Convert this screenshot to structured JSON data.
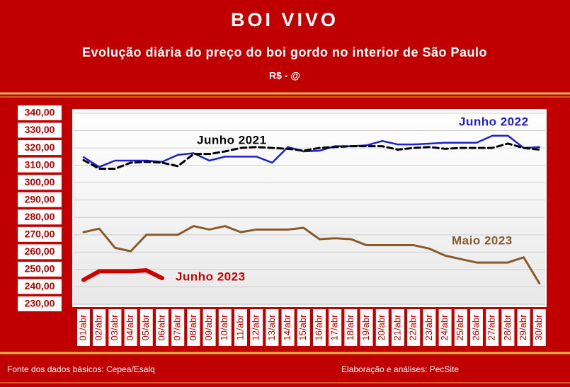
{
  "chart_data": {
    "type": "line",
    "title": "BOI VIVO",
    "subtitle": "Evolução diária do preço do boi gordo no interior de São Paulo",
    "unit": "R$ - @",
    "source": "Fonte dos dados básicos: Cepea/Esalq",
    "credit": "Elaboração e análises: PecSite",
    "categories": [
      "01/abr",
      "02/abr",
      "03/abr",
      "04/abr",
      "05/abr",
      "06/abr",
      "07/abr",
      "08/abr",
      "09/abr",
      "10/abr",
      "11/abr",
      "12/abr",
      "13/abr",
      "14/abr",
      "15/abr",
      "16/abr",
      "17/abr",
      "18/abr",
      "19/abr",
      "20/abr",
      "21/abr",
      "22/abr",
      "23/abr",
      "24/abr",
      "25/abr",
      "26/abr",
      "27/abr",
      "28/abr",
      "29/abr",
      "30/abr"
    ],
    "ylim": [
      230,
      340
    ],
    "yticks": [
      {
        "value": 230,
        "label": "230,00"
      },
      {
        "value": 240,
        "label": "240,00"
      },
      {
        "value": 250,
        "label": "250,00"
      },
      {
        "value": 260,
        "label": "260,00"
      },
      {
        "value": 270,
        "label": "270,00"
      },
      {
        "value": 280,
        "label": "280,00"
      },
      {
        "value": 290,
        "label": "290,00"
      },
      {
        "value": 300,
        "label": "300,00"
      },
      {
        "value": 310,
        "label": "310,00"
      },
      {
        "value": 320,
        "label": "320,00"
      },
      {
        "value": 330,
        "label": "330,00"
      },
      {
        "value": 340,
        "label": "340,00"
      }
    ],
    "grid": true,
    "series": [
      {
        "name": "Junho 2022",
        "color": "#1f1fcc",
        "values": [
          314.7,
          309,
          312.7,
          312.7,
          312.7,
          312,
          316,
          317,
          312.7,
          315,
          315,
          315,
          311.5,
          320.5,
          318,
          318.4,
          321,
          321,
          321.5,
          324,
          322,
          322,
          322.5,
          323,
          323,
          323,
          327,
          327,
          320,
          320.5
        ]
      },
      {
        "name": "Junho 2021",
        "color": "#000000",
        "dashed": true,
        "values": [
          313,
          308,
          308,
          311.5,
          312,
          311.5,
          309.5,
          316.5,
          316.5,
          318,
          320,
          320.5,
          320,
          319.5,
          318.4,
          320,
          320.5,
          321,
          321,
          321,
          319,
          320,
          320.5,
          319.5,
          320,
          320,
          320,
          322.5,
          320,
          319
        ]
      },
      {
        "name": "Maio 2023",
        "color": "#8b5a2b",
        "values": [
          271.5,
          273.5,
          262.5,
          260.5,
          270,
          270,
          270,
          275,
          273,
          275,
          271.5,
          273,
          273,
          273,
          274,
          267.5,
          268,
          267.5,
          264,
          264,
          264,
          264,
          262,
          258,
          256,
          254,
          254,
          254,
          257,
          242
        ]
      },
      {
        "name": "Junho 2023",
        "color": "#cc0000",
        "values": [
          244,
          249,
          249,
          249,
          249.5,
          245,
          null,
          null,
          null,
          null,
          null,
          null,
          null,
          null,
          null,
          null,
          null,
          null,
          null,
          null,
          null,
          null,
          null,
          null,
          null,
          null,
          null,
          null,
          null,
          null
        ]
      }
    ]
  }
}
